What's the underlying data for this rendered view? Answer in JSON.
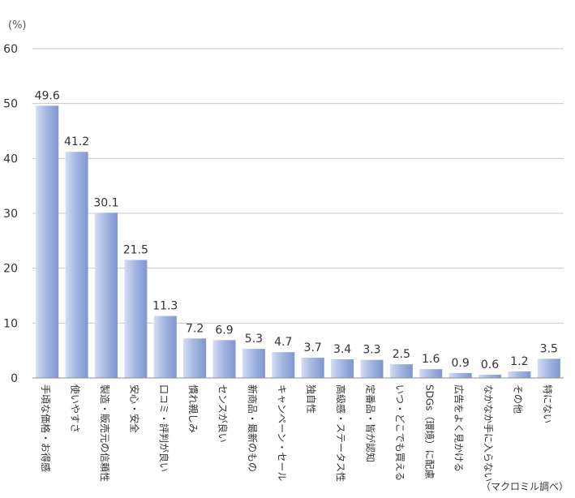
{
  "chart_data": {
    "type": "bar",
    "unit_label": "(%)",
    "source": "（マクロミル調べ）",
    "categories": [
      "手頃な価格・お得感",
      "使いやすさ",
      "製造・販売元の信頼性",
      "安心・安全",
      "口コミ・評判が良い",
      "慣れ親しみ",
      "センスが良い",
      "新商品・最新のもの",
      "キャンペーン・セール",
      "独自性",
      "高級感・ステータス性",
      "定番品・皆が認知",
      "いつ・どこでも買える",
      "SDGs（環境）に配慮",
      "広告をよく見かける",
      "なかなか手に入らない",
      "その他",
      "特にない"
    ],
    "values": [
      49.6,
      41.2,
      30.1,
      21.5,
      11.3,
      7.2,
      6.9,
      5.3,
      4.7,
      3.7,
      3.4,
      3.3,
      2.5,
      1.6,
      0.9,
      0.6,
      1.2,
      3.5
    ],
    "value_labels": [
      "49.6",
      "41.2",
      "30.1",
      "21.5",
      "11.3",
      "7.2",
      "6.9",
      "5.3",
      "4.7",
      "3.7",
      "3.4",
      "3.3",
      "2.5",
      "1.6",
      "0.9",
      "0.6",
      "1.2",
      "3.5"
    ],
    "y_ticks": [
      0,
      10,
      20,
      30,
      40,
      50,
      60
    ],
    "ylim": [
      0,
      60
    ],
    "grid": true,
    "colors": {
      "bar_light": "#d4def3",
      "bar_mid": "#a6b8e2",
      "bar_dark": "#7f96cf",
      "grid": "#c8c8c8",
      "axis": "#8c8c8c",
      "text": "#333333"
    }
  }
}
